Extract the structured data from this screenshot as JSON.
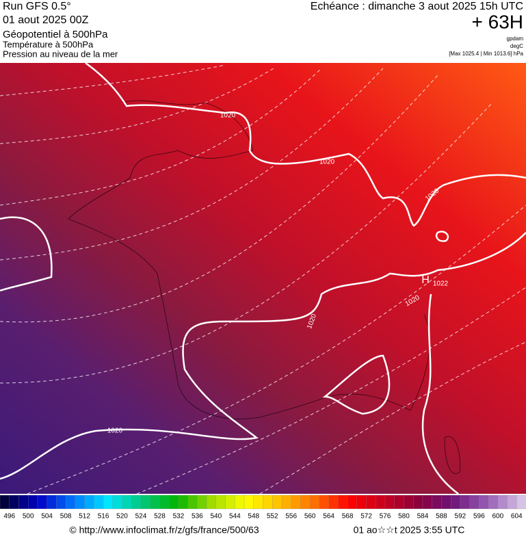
{
  "header": {
    "run": "Run GFS 0.5°",
    "date": "01 aout 2025 00Z",
    "field1": "Géopotentiel à 500hPa",
    "field2": "Température à 500hPa",
    "field3": "Pression au niveau de la mer",
    "forecast": "Echéance : dimanche 3 aout 2025 15h UTC",
    "lead": "+ 63H",
    "unit1": "gpdam",
    "unit2": "degC",
    "extremes": "[Max 1025.4 | Min 1013.6] hPa"
  },
  "map": {
    "contour_labels": [
      1020,
      1020,
      1020,
      1020,
      1020,
      1020,
      1022
    ],
    "high": "H"
  },
  "scale": {
    "labels": [
      496,
      500,
      504,
      508,
      512,
      516,
      520,
      524,
      528,
      532,
      536,
      540,
      544,
      548,
      552,
      556,
      560,
      564,
      568,
      572,
      576,
      580,
      584,
      588,
      592,
      596,
      600,
      604
    ]
  },
  "footer": {
    "url": "© http://www.infoclimat.fr/z/gfs/france/500/63",
    "stamp": "01 ao☆☆t 2025  3:55 UTC"
  }
}
